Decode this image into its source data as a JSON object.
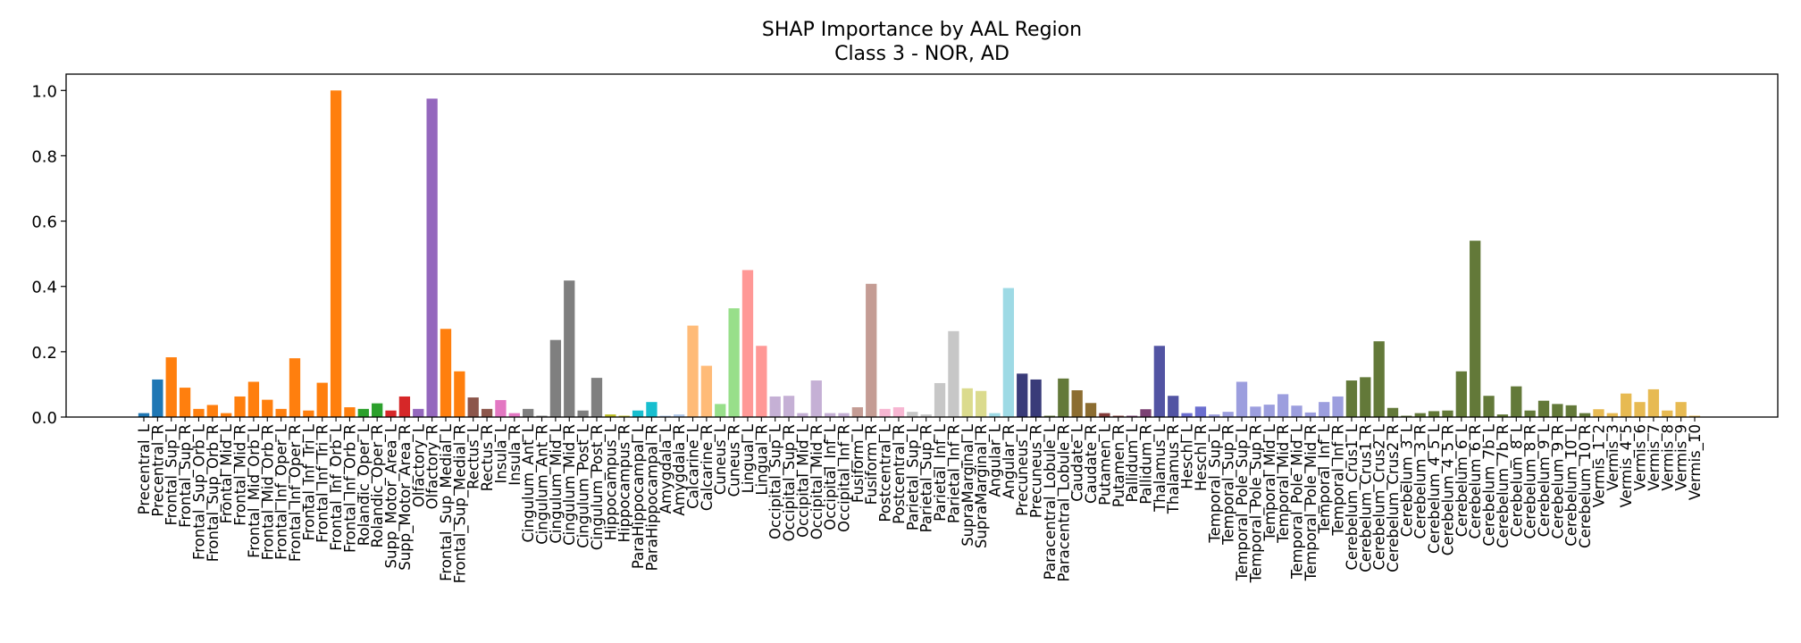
{
  "chart_data": {
    "type": "bar",
    "title": "SHAP Importance by AAL Region",
    "subtitle": "Class 3 - NOR, AD",
    "xlabel": "",
    "ylabel": "",
    "ylim": [
      0,
      1.05
    ],
    "yticks": [
      0.0,
      0.2,
      0.4,
      0.6,
      0.8,
      1.0
    ],
    "ytick_labels": [
      "0.0",
      "0.2",
      "0.4",
      "0.6",
      "0.8",
      "1.0"
    ],
    "grid": false,
    "categories": [
      "Precentral_L",
      "Precentral_R",
      "Frontal_Sup_L",
      "Frontal_Sup_R",
      "Frontal_Sup_Orb_L",
      "Frontal_Sup_Orb_R",
      "Frontal_Mid_L",
      "Frontal_Mid_R",
      "Frontal_Mid_Orb_L",
      "Frontal_Mid_Orb_R",
      "Frontal_Inf_Oper_L",
      "Frontal_Inf_Oper_R",
      "Frontal_Inf_Tri_L",
      "Frontal_Inf_Tri_R",
      "Frontal_Inf_Orb_L",
      "Frontal_Inf_Orb_R",
      "Rolandic_Oper_L",
      "Rolandic_Oper_R",
      "Supp_Motor_Area_L",
      "Supp_Motor_Area_R",
      "Olfactory_L",
      "Olfactory_R",
      "Frontal_Sup_Medial_L",
      "Frontal_Sup_Medial_R",
      "Rectus_L",
      "Rectus_R",
      "Insula_L",
      "Insula_R",
      "Cingulum_Ant_L",
      "Cingulum_Ant_R",
      "Cingulum_Mid_L",
      "Cingulum_Mid_R",
      "Cingulum_Post_L",
      "Cingulum_Post_R",
      "Hippocampus_L",
      "Hippocampus_R",
      "ParaHippocampal_L",
      "ParaHippocampal_R",
      "Amygdala_L",
      "Amygdala_R",
      "Calcarine_L",
      "Calcarine_R",
      "Cuneus_L",
      "Cuneus_R",
      "Lingual_L",
      "Lingual_R",
      "Occipital_Sup_L",
      "Occipital_Sup_R",
      "Occipital_Mid_L",
      "Occipital_Mid_R",
      "Occipital_Inf_L",
      "Occipital_Inf_R",
      "Fusiform_L",
      "Fusiform_R",
      "Postcentral_L",
      "Postcentral_R",
      "Parietal_Sup_L",
      "Parietal_Sup_R",
      "Parietal_Inf_L",
      "Parietal_Inf_R",
      "SupraMarginal_L",
      "SupraMarginal_R",
      "Angular_L",
      "Angular_R",
      "Precuneus_L",
      "Precuneus_R",
      "Paracentral_Lobule_L",
      "Paracentral_Lobule_R",
      "Caudate_L",
      "Caudate_R",
      "Putamen_L",
      "Putamen_R",
      "Pallidum_L",
      "Pallidum_R",
      "Thalamus_L",
      "Thalamus_R",
      "Heschl_L",
      "Heschl_R",
      "Temporal_Sup_L",
      "Temporal_Sup_R",
      "Temporal_Pole_Sup_L",
      "Temporal_Pole_Sup_R",
      "Temporal_Mid_L",
      "Temporal_Mid_R",
      "Temporal_Pole_Mid_L",
      "Temporal_Pole_Mid_R",
      "Temporal_Inf_L",
      "Temporal_Inf_R",
      "Cerebelum_Crus1_L",
      "Cerebelum_Crus1_R",
      "Cerebelum_Crus2_L",
      "Cerebelum_Crus2_R",
      "Cerebelum_3_L",
      "Cerebelum_3_R",
      "Cerebelum_4_5_L",
      "Cerebelum_4_5_R",
      "Cerebelum_6_L",
      "Cerebelum_6_R",
      "Cerebelum_7b_L",
      "Cerebelum_7b_R",
      "Cerebelum_8_L",
      "Cerebelum_8_R",
      "Cerebelum_9_L",
      "Cerebelum_9_R",
      "Cerebelum_10_L",
      "Cerebelum_10_R",
      "Vermis_1_2",
      "Vermis_3",
      "Vermis_4_5",
      "Vermis_6",
      "Vermis_7",
      "Vermis_8",
      "Vermis_9",
      "Vermis_10"
    ],
    "values": [
      0.012,
      0.115,
      0.183,
      0.09,
      0.025,
      0.037,
      0.012,
      0.063,
      0.108,
      0.053,
      0.025,
      0.18,
      0.02,
      0.105,
      1.0,
      0.03,
      0.025,
      0.042,
      0.02,
      0.063,
      0.025,
      0.975,
      0.27,
      0.14,
      0.06,
      0.025,
      0.052,
      0.012,
      0.025,
      0.004,
      0.236,
      0.418,
      0.02,
      0.12,
      0.008,
      0.004,
      0.02,
      0.046,
      0.004,
      0.008,
      0.28,
      0.157,
      0.04,
      0.333,
      0.45,
      0.218,
      0.063,
      0.065,
      0.012,
      0.112,
      0.012,
      0.012,
      0.03,
      0.408,
      0.025,
      0.03,
      0.016,
      0.008,
      0.104,
      0.263,
      0.088,
      0.08,
      0.012,
      0.395,
      0.133,
      0.115,
      0.004,
      0.118,
      0.082,
      0.043,
      0.012,
      0.004,
      0.004,
      0.024,
      0.218,
      0.065,
      0.012,
      0.032,
      0.008,
      0.016,
      0.108,
      0.032,
      0.038,
      0.07,
      0.035,
      0.014,
      0.046,
      0.063,
      0.112,
      0.122,
      0.232,
      0.028,
      0.004,
      0.012,
      0.018,
      0.02,
      0.14,
      0.54,
      0.065,
      0.008,
      0.094,
      0.02,
      0.05,
      0.04,
      0.036,
      0.012,
      0.024,
      0.012,
      0.072,
      0.046,
      0.085,
      0.02,
      0.046,
      0.004
    ],
    "colors": [
      "#1f77b4",
      "#1f77b4",
      "#ff7f0e",
      "#ff7f0e",
      "#ff7f0e",
      "#ff7f0e",
      "#ff7f0e",
      "#ff7f0e",
      "#ff7f0e",
      "#ff7f0e",
      "#ff7f0e",
      "#ff7f0e",
      "#ff7f0e",
      "#ff7f0e",
      "#ff7f0e",
      "#ff7f0e",
      "#2ca02c",
      "#2ca02c",
      "#d62728",
      "#d62728",
      "#9467bd",
      "#9467bd",
      "#ff7f0e",
      "#ff7f0e",
      "#8c564b",
      "#8c564b",
      "#e377c2",
      "#e377c2",
      "#7f7f7f",
      "#7f7f7f",
      "#7f7f7f",
      "#7f7f7f",
      "#7f7f7f",
      "#7f7f7f",
      "#bcbd22",
      "#bcbd22",
      "#17becf",
      "#17becf",
      "#aec7e8",
      "#aec7e8",
      "#ffbb78",
      "#ffbb78",
      "#98df8a",
      "#98df8a",
      "#ff9896",
      "#ff9896",
      "#c5b0d5",
      "#c5b0d5",
      "#c5b0d5",
      "#c5b0d5",
      "#c5b0d5",
      "#c5b0d5",
      "#c49c94",
      "#c49c94",
      "#f7b6d2",
      "#f7b6d2",
      "#c7c7c7",
      "#c7c7c7",
      "#c7c7c7",
      "#c7c7c7",
      "#dbdb8d",
      "#dbdb8d",
      "#9edae5",
      "#9edae5",
      "#393b79",
      "#393b79",
      "#637939",
      "#637939",
      "#8c6d31",
      "#8c6d31",
      "#843c39",
      "#843c39",
      "#7b4173",
      "#7b4173",
      "#5254a3",
      "#5254a3",
      "#6b6ecf",
      "#6b6ecf",
      "#9c9ede",
      "#9c9ede",
      "#9c9ede",
      "#9c9ede",
      "#9c9ede",
      "#9c9ede",
      "#9c9ede",
      "#9c9ede",
      "#9c9ede",
      "#9c9ede",
      "#637939",
      "#637939",
      "#637939",
      "#637939",
      "#637939",
      "#637939",
      "#637939",
      "#637939",
      "#637939",
      "#637939",
      "#637939",
      "#637939",
      "#637939",
      "#637939",
      "#637939",
      "#637939",
      "#637939",
      "#637939",
      "#e7ba52",
      "#e7ba52",
      "#e7ba52",
      "#e7ba52",
      "#e7ba52",
      "#e7ba52",
      "#e7ba52",
      "#e7ba52"
    ]
  }
}
